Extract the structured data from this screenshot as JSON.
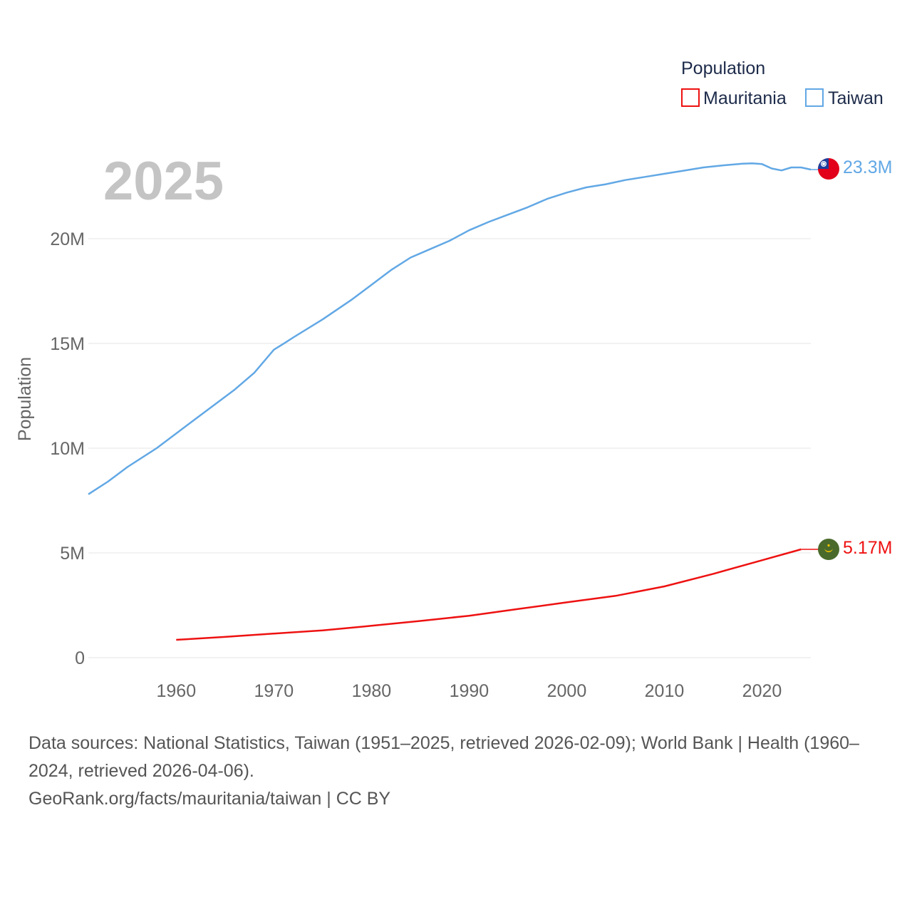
{
  "chart_data": {
    "type": "line",
    "year_label": "2025",
    "ylabel": "Population",
    "xlim": [
      1951,
      2025
    ],
    "ylim": [
      0,
      23600000
    ],
    "x_ticks": [
      1960,
      1970,
      1980,
      1990,
      2000,
      2010,
      2020
    ],
    "x_tick_labels": [
      "1960",
      "1970",
      "1980",
      "1990",
      "2000",
      "2010",
      "2020"
    ],
    "y_ticks": [
      0,
      5000000,
      10000000,
      15000000,
      20000000
    ],
    "y_tick_labels": [
      "0",
      "5M",
      "10M",
      "15M",
      "20M"
    ],
    "legend": {
      "title": "Population",
      "items": [
        {
          "name": "Mauritania",
          "color": "#ee1111"
        },
        {
          "name": "Taiwan",
          "color": "#62a8e5"
        }
      ]
    },
    "series": [
      {
        "name": "Taiwan",
        "color": "#62a8e5",
        "end_label": "23.3M",
        "flag": "taiwan-flag",
        "points": [
          [
            1951,
            7800000
          ],
          [
            1953,
            8400000
          ],
          [
            1955,
            9100000
          ],
          [
            1958,
            10000000
          ],
          [
            1960,
            10700000
          ],
          [
            1962,
            11400000
          ],
          [
            1964,
            12100000
          ],
          [
            1966,
            12800000
          ],
          [
            1968,
            13600000
          ],
          [
            1970,
            14700000
          ],
          [
            1971,
            14990000
          ],
          [
            1972,
            15290000
          ],
          [
            1975,
            16150000
          ],
          [
            1978,
            17100000
          ],
          [
            1980,
            17800000
          ],
          [
            1982,
            18500000
          ],
          [
            1984,
            19100000
          ],
          [
            1986,
            19500000
          ],
          [
            1988,
            19900000
          ],
          [
            1990,
            20400000
          ],
          [
            1992,
            20800000
          ],
          [
            1994,
            21150000
          ],
          [
            1996,
            21500000
          ],
          [
            1998,
            21900000
          ],
          [
            2000,
            22200000
          ],
          [
            2002,
            22450000
          ],
          [
            2004,
            22600000
          ],
          [
            2006,
            22800000
          ],
          [
            2008,
            22950000
          ],
          [
            2010,
            23100000
          ],
          [
            2012,
            23250000
          ],
          [
            2014,
            23400000
          ],
          [
            2016,
            23500000
          ],
          [
            2018,
            23580000
          ],
          [
            2019,
            23600000
          ],
          [
            2020,
            23560000
          ],
          [
            2021,
            23350000
          ],
          [
            2022,
            23260000
          ],
          [
            2023,
            23400000
          ],
          [
            2024,
            23400000
          ],
          [
            2025,
            23300000
          ]
        ]
      },
      {
        "name": "Mauritania",
        "color": "#ee1111",
        "end_label": "5.17M",
        "flag": "mauritania-flag",
        "points": [
          [
            1960,
            850000
          ],
          [
            1965,
            990000
          ],
          [
            1970,
            1150000
          ],
          [
            1975,
            1300000
          ],
          [
            1980,
            1520000
          ],
          [
            1985,
            1750000
          ],
          [
            1990,
            2000000
          ],
          [
            1995,
            2320000
          ],
          [
            2000,
            2640000
          ],
          [
            2005,
            2950000
          ],
          [
            2010,
            3400000
          ],
          [
            2015,
            4000000
          ],
          [
            2020,
            4650000
          ],
          [
            2024,
            5170000
          ]
        ]
      }
    ]
  },
  "footer": {
    "line1": "Data sources: National Statistics, Taiwan (1951–2025, retrieved 2026-02-09); World Bank | Health (1960–",
    "line2": "2024, retrieved 2026-04-06).",
    "line3": "GeoRank.org/facts/mauritania/taiwan | CC BY"
  }
}
